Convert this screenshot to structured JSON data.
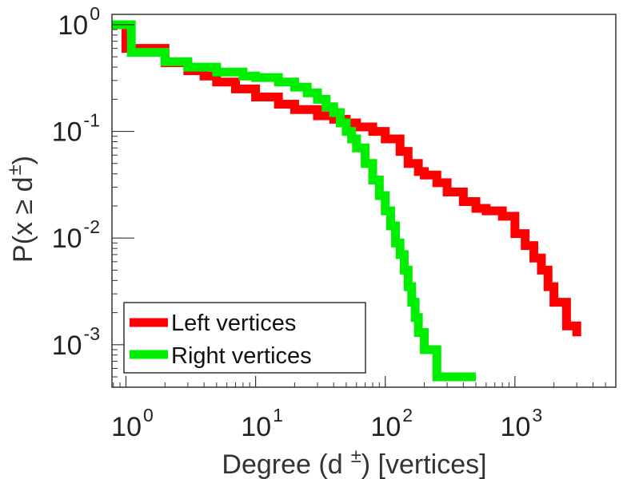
{
  "chart_data": {
    "type": "line",
    "title": "",
    "xlabel": {
      "base": "Degree (d",
      "sup": "±",
      "rest": ") [vertices]"
    },
    "ylabel": {
      "base": "P(x ≥ d",
      "sup": "±",
      "rest": ")"
    },
    "xscale": "log",
    "yscale": "log",
    "xlim": [
      0.78,
      6000
    ],
    "ylim": [
      0.0004,
      1.25
    ],
    "x_ticks": [
      {
        "value": 1,
        "base": "10",
        "exp": "0"
      },
      {
        "value": 10,
        "base": "10",
        "exp": "1"
      },
      {
        "value": 100,
        "base": "10",
        "exp": "2"
      },
      {
        "value": 1000,
        "base": "10",
        "exp": "3"
      }
    ],
    "y_ticks": [
      {
        "value": 1,
        "base": "10",
        "exp": "0"
      },
      {
        "value": 0.1,
        "base": "10",
        "exp": "-1"
      },
      {
        "value": 0.01,
        "base": "10",
        "exp": "-2"
      },
      {
        "value": 0.001,
        "base": "10",
        "exp": "-3"
      }
    ],
    "legend_position": "bottom-left",
    "series": [
      {
        "name": "Left vertices",
        "color": "#ff0000",
        "drawstyle": "steps-post",
        "x": [
          0.78,
          1,
          2,
          3,
          4,
          5,
          7,
          10,
          15,
          20,
          30,
          40,
          50,
          60,
          80,
          100,
          130,
          150,
          180,
          200,
          250,
          300,
          400,
          500,
          600,
          800,
          1000,
          1200,
          1400,
          1600,
          1800,
          2000,
          2500,
          3000
        ],
        "y": [
          1.0,
          0.6,
          0.44,
          0.37,
          0.33,
          0.29,
          0.25,
          0.21,
          0.18,
          0.16,
          0.14,
          0.13,
          0.12,
          0.11,
          0.1,
          0.085,
          0.065,
          0.05,
          0.042,
          0.039,
          0.033,
          0.027,
          0.022,
          0.019,
          0.018,
          0.016,
          0.011,
          0.0085,
          0.0065,
          0.005,
          0.0035,
          0.0025,
          0.0015,
          0.0012
        ]
      },
      {
        "name": "Right vertices",
        "color": "#00ee00",
        "drawstyle": "steps-post",
        "x": [
          0.78,
          1.1,
          2,
          3,
          5,
          8,
          10,
          15,
          20,
          25,
          30,
          35,
          40,
          45,
          50,
          55,
          60,
          70,
          80,
          90,
          100,
          110,
          120,
          130,
          140,
          150,
          160,
          170,
          180,
          200,
          250,
          300,
          400,
          500
        ],
        "y": [
          1.0,
          0.55,
          0.45,
          0.4,
          0.36,
          0.33,
          0.32,
          0.29,
          0.26,
          0.23,
          0.2,
          0.17,
          0.15,
          0.12,
          0.1,
          0.085,
          0.07,
          0.05,
          0.035,
          0.025,
          0.018,
          0.013,
          0.009,
          0.007,
          0.005,
          0.0035,
          0.0025,
          0.0018,
          0.0013,
          0.0009,
          0.0005,
          0.0005,
          0.0005,
          0.0005
        ]
      }
    ]
  }
}
